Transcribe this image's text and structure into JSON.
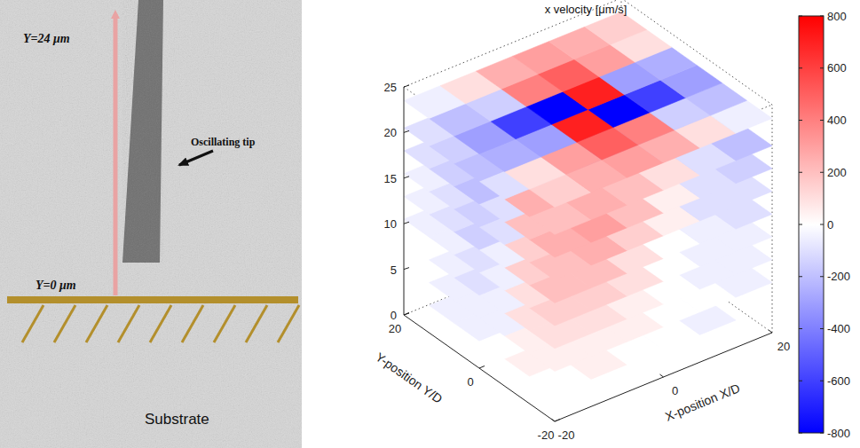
{
  "diagram": {
    "labels": {
      "top": "Y=24 μm",
      "bottom": "Y=0 μm",
      "tip": "Oscillating tip",
      "substrate": "Substrate"
    }
  },
  "chart_data": {
    "type": "slices3d",
    "title": "x velocity [μm/s]",
    "x_label": "X-position X/D",
    "y_label": "Y-position Y/D",
    "xlim": [
      -20,
      20
    ],
    "xticks": [
      -20,
      0,
      20
    ],
    "ylim": [
      -20,
      20
    ],
    "yticks": [
      -20,
      0,
      20
    ],
    "zlim": [
      0,
      25
    ],
    "zticks": [
      0,
      5,
      10,
      15,
      20,
      25
    ],
    "grid": false,
    "x_edges": [
      -20,
      -13.3,
      -6.7,
      0,
      6.7,
      13.3,
      20
    ],
    "y_edges": [
      -20,
      -13.3,
      -6.7,
      0,
      6.7,
      13.3,
      20
    ],
    "slices": [
      {
        "z": 0.5,
        "values": [
          [
            null,
            null,
            0,
            0,
            null,
            null
          ],
          [
            null,
            0,
            0,
            -50,
            0,
            null
          ],
          [
            0,
            -50,
            -50,
            -50,
            0,
            0
          ],
          [
            0,
            -50,
            -50,
            0,
            0,
            0
          ],
          [
            null,
            0,
            0,
            0,
            0,
            null
          ],
          [
            null,
            null,
            null,
            0,
            null,
            null
          ]
        ]
      },
      {
        "z": 3,
        "values": [
          [
            null,
            50,
            0,
            0,
            -50,
            null
          ],
          [
            50,
            0,
            0,
            -50,
            -50,
            0
          ],
          [
            0,
            -50,
            -50,
            -50,
            -50,
            0
          ],
          [
            -50,
            -50,
            -50,
            0,
            50,
            50
          ],
          [
            -50,
            -50,
            0,
            0,
            50,
            0
          ],
          [
            null,
            null,
            0,
            0,
            null,
            null
          ]
        ]
      },
      {
        "z": 5.5,
        "values": [
          [
            50,
            50,
            50,
            0,
            0,
            -50
          ],
          [
            50,
            50,
            0,
            -50,
            -50,
            -50
          ],
          [
            -50,
            -50,
            -100,
            -100,
            -50,
            0
          ],
          [
            -50,
            -100,
            -50,
            50,
            50,
            50
          ],
          [
            -50,
            -50,
            0,
            50,
            50,
            50
          ],
          [
            null,
            null,
            0,
            0,
            50,
            null
          ]
        ]
      },
      {
        "z": 8,
        "values": [
          [
            100,
            100,
            50,
            0,
            -50,
            -50
          ],
          [
            100,
            50,
            0,
            -50,
            -100,
            -50
          ],
          [
            -50,
            -100,
            -150,
            -100,
            -50,
            50
          ],
          [
            -100,
            -100,
            -50,
            50,
            100,
            100
          ],
          [
            -50,
            -50,
            0,
            50,
            100,
            50
          ],
          [
            null,
            0,
            0,
            50,
            50,
            null
          ]
        ]
      },
      {
        "z": 10.5,
        "values": [
          [
            150,
            150,
            100,
            0,
            -50,
            -50
          ],
          [
            100,
            100,
            0,
            -100,
            -150,
            -100
          ],
          [
            -50,
            -100,
            -200,
            -150,
            -100,
            50
          ],
          [
            -100,
            -150,
            -100,
            100,
            150,
            150
          ],
          [
            -50,
            -100,
            0,
            100,
            150,
            100
          ],
          [
            -50,
            0,
            50,
            50,
            100,
            50
          ]
        ]
      },
      {
        "z": 13,
        "values": [
          [
            200,
            200,
            100,
            0,
            -50,
            -100
          ],
          [
            150,
            150,
            50,
            -100,
            -200,
            -100
          ],
          [
            -50,
            -150,
            -250,
            -200,
            -100,
            100
          ],
          [
            -150,
            -200,
            -150,
            150,
            200,
            200
          ],
          [
            -100,
            -100,
            50,
            150,
            200,
            150
          ],
          [
            -50,
            0,
            50,
            100,
            100,
            50
          ]
        ]
      },
      {
        "z": 15.5,
        "values": [
          [
            200,
            250,
            150,
            50,
            -100,
            -100
          ],
          [
            150,
            200,
            100,
            -150,
            -200,
            -150
          ],
          [
            -100,
            -150,
            -300,
            -250,
            -150,
            100
          ],
          [
            -150,
            -250,
            -200,
            200,
            250,
            200
          ],
          [
            -100,
            -150,
            50,
            200,
            250,
            150
          ],
          [
            -50,
            -50,
            50,
            100,
            150,
            100
          ]
        ]
      },
      {
        "z": 18,
        "values": [
          [
            250,
            300,
            200,
            50,
            -100,
            -150
          ],
          [
            200,
            250,
            150,
            -150,
            -250,
            -200
          ],
          [
            -100,
            -200,
            -350,
            -300,
            -200,
            100
          ],
          [
            -200,
            -300,
            -250,
            250,
            300,
            250
          ],
          [
            -150,
            -150,
            100,
            250,
            300,
            200
          ],
          [
            -100,
            -50,
            50,
            150,
            200,
            150
          ]
        ]
      },
      {
        "z": 20.5,
        "values": [
          [
            200,
            250,
            200,
            100,
            -100,
            -200
          ],
          [
            250,
            350,
            300,
            -200,
            -300,
            -250
          ],
          [
            -100,
            -200,
            -450,
            -400,
            -250,
            -150
          ],
          [
            -200,
            -300,
            -350,
            350,
            300,
            150
          ],
          [
            -150,
            -200,
            150,
            300,
            350,
            200
          ],
          [
            -100,
            -50,
            100,
            200,
            250,
            150
          ]
        ]
      },
      {
        "z": 23.5,
        "values": [
          [
            150,
            250,
            300,
            250,
            100,
            -50
          ],
          [
            100,
            300,
            500,
            400,
            -150,
            -200
          ],
          [
            -250,
            -300,
            700,
            -800,
            -600,
            -300
          ],
          [
            -300,
            -600,
            -800,
            700,
            -300,
            -250
          ],
          [
            -200,
            -150,
            400,
            500,
            300,
            100
          ],
          [
            -50,
            100,
            250,
            300,
            250,
            150
          ]
        ]
      }
    ],
    "colorbar": {
      "range": [
        -800,
        800
      ],
      "ticks": [
        -800,
        -600,
        -400,
        -200,
        0,
        200,
        400,
        600,
        800
      ]
    }
  }
}
